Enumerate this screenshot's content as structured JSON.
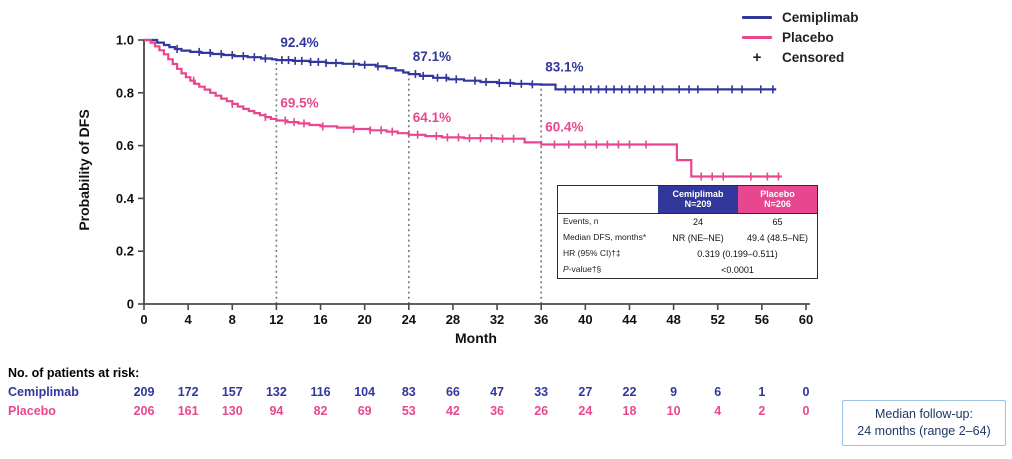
{
  "colors": {
    "cemiplimab": "#31379B",
    "placebo": "#E8478F",
    "axis": "#4A4A4A",
    "text": "#222222",
    "dotted_line": "#7A7A7A",
    "table_border": "#2B2B2B",
    "median_box_border": "#9DC3E6",
    "median_box_text": "#1F3864"
  },
  "legend": {
    "items": [
      {
        "label": "Cemiplimab",
        "marker": "line",
        "color_key": "cemiplimab"
      },
      {
        "label": "Placebo",
        "marker": "line",
        "color_key": "placebo"
      },
      {
        "label": "Censored",
        "marker": "plus",
        "color_key": "text"
      }
    ]
  },
  "axes": {
    "xlabel": "Month",
    "ylabel": "Probability of DFS",
    "x_ticks": [
      0,
      4,
      8,
      12,
      16,
      20,
      24,
      28,
      32,
      36,
      40,
      44,
      48,
      52,
      56,
      60
    ],
    "y_tick_labels": [
      "0",
      "0.2",
      "0.4",
      "0.6",
      "0.8",
      "1.0"
    ],
    "xlim": [
      0,
      60
    ],
    "ylim": [
      0,
      1
    ]
  },
  "chart_data": {
    "type": "line",
    "subtype": "kaplan_meier_step",
    "title": "",
    "xlabel": "Month",
    "ylabel": "Probability of DFS",
    "xlim": [
      0,
      60
    ],
    "ylim": [
      0,
      1
    ],
    "grid": false,
    "legend_position": "top-right",
    "series": [
      {
        "name": "Cemiplimab",
        "color_key": "cemiplimab",
        "points": [
          [
            0,
            1.0
          ],
          [
            1.2,
            0.99
          ],
          [
            1.8,
            0.981
          ],
          [
            2.3,
            0.973
          ],
          [
            2.8,
            0.966
          ],
          [
            3.4,
            0.96
          ],
          [
            4.2,
            0.955
          ],
          [
            5.2,
            0.951
          ],
          [
            6.2,
            0.947
          ],
          [
            7.2,
            0.943
          ],
          [
            8.2,
            0.939
          ],
          [
            9.4,
            0.935
          ],
          [
            10.6,
            0.93
          ],
          [
            11.6,
            0.927
          ],
          [
            12,
            0.924
          ],
          [
            13.5,
            0.921
          ],
          [
            15,
            0.917
          ],
          [
            16.5,
            0.913
          ],
          [
            18,
            0.91
          ],
          [
            19.5,
            0.906
          ],
          [
            21,
            0.9
          ],
          [
            22,
            0.893
          ],
          [
            22.8,
            0.885
          ],
          [
            23.5,
            0.877
          ],
          [
            24,
            0.871
          ],
          [
            25,
            0.864
          ],
          [
            26.2,
            0.857
          ],
          [
            27.6,
            0.851
          ],
          [
            29,
            0.846
          ],
          [
            30.5,
            0.841
          ],
          [
            32,
            0.837
          ],
          [
            33.5,
            0.834
          ],
          [
            35,
            0.832
          ],
          [
            36,
            0.831
          ],
          [
            37.3,
            0.813
          ]
        ],
        "end_month": 57.3,
        "censor_months": [
          3,
          5,
          6,
          7,
          8,
          9,
          10,
          11,
          12.5,
          13.1,
          13.7,
          14.3,
          15.1,
          15.8,
          16.5,
          17.4,
          19,
          20,
          21.2,
          24.6,
          25.3,
          26.6,
          27.4,
          28.3,
          30,
          31,
          32.2,
          33.2,
          34.2,
          35.2,
          38.2,
          39,
          39.8,
          40.5,
          41.2,
          41.9,
          42.6,
          43.3,
          44,
          44.7,
          45.4,
          46.2,
          47,
          48.5,
          49.4,
          50.2,
          52,
          53.3,
          54.2,
          55.9,
          57
        ]
      },
      {
        "name": "Placebo",
        "color_key": "placebo",
        "points": [
          [
            0,
            1.0
          ],
          [
            0.6,
            0.99
          ],
          [
            1.0,
            0.976
          ],
          [
            1.4,
            0.961
          ],
          [
            1.8,
            0.946
          ],
          [
            2.2,
            0.927
          ],
          [
            2.6,
            0.909
          ],
          [
            3.0,
            0.891
          ],
          [
            3.4,
            0.874
          ],
          [
            3.8,
            0.859
          ],
          [
            4.2,
            0.846
          ],
          [
            4.6,
            0.834
          ],
          [
            5.0,
            0.823
          ],
          [
            5.5,
            0.812
          ],
          [
            6.0,
            0.8
          ],
          [
            6.5,
            0.789
          ],
          [
            7.0,
            0.778
          ],
          [
            7.5,
            0.768
          ],
          [
            8.0,
            0.758
          ],
          [
            8.5,
            0.748
          ],
          [
            9.0,
            0.739
          ],
          [
            9.5,
            0.731
          ],
          [
            10.0,
            0.723
          ],
          [
            10.5,
            0.715
          ],
          [
            11.0,
            0.708
          ],
          [
            11.5,
            0.701
          ],
          [
            12,
            0.695
          ],
          [
            13,
            0.689
          ],
          [
            14,
            0.684
          ],
          [
            15,
            0.678
          ],
          [
            16,
            0.673
          ],
          [
            17.5,
            0.668
          ],
          [
            19,
            0.663
          ],
          [
            20.5,
            0.658
          ],
          [
            22,
            0.653
          ],
          [
            23,
            0.647
          ],
          [
            24,
            0.641
          ],
          [
            25.5,
            0.636
          ],
          [
            27,
            0.631
          ],
          [
            29,
            0.628
          ],
          [
            32,
            0.626
          ],
          [
            34.5,
            0.612
          ],
          [
            36,
            0.604
          ],
          [
            48.3,
            0.545
          ],
          [
            49.6,
            0.483
          ]
        ],
        "end_month": 57.8,
        "censor_months": [
          4.5,
          8,
          11,
          12.8,
          13.6,
          14.5,
          16.2,
          19,
          20.5,
          21.5,
          22.5,
          24.8,
          26.5,
          27.5,
          28.5,
          29.5,
          30.5,
          31.5,
          32.5,
          33.5,
          37.2,
          38.5,
          40,
          41,
          42,
          43,
          44,
          45.5,
          50.5,
          51.5,
          52.5,
          55,
          56.5,
          57.5
        ]
      }
    ],
    "reference_lines": [
      {
        "month": 12,
        "top_value": 0.924
      },
      {
        "month": 24,
        "top_value": 0.871
      },
      {
        "month": 36,
        "top_value": 0.831
      }
    ],
    "annotations": [
      {
        "text": "92.4%",
        "month": 12,
        "value": 0.924,
        "color_key": "cemiplimab"
      },
      {
        "text": "87.1%",
        "month": 24,
        "value": 0.871,
        "color_key": "cemiplimab"
      },
      {
        "text": "83.1%",
        "month": 36,
        "value": 0.831,
        "color_key": "cemiplimab"
      },
      {
        "text": "69.5%",
        "month": 12,
        "value": 0.695,
        "color_key": "placebo"
      },
      {
        "text": "64.1%",
        "month": 24,
        "value": 0.641,
        "color_key": "placebo"
      },
      {
        "text": "60.4%",
        "month": 36,
        "value": 0.604,
        "color_key": "placebo"
      }
    ]
  },
  "stats_table": {
    "col1": {
      "name": "Cemiplimab",
      "n": "N=209"
    },
    "col2": {
      "name": "Placebo",
      "n": "N=206"
    },
    "events": {
      "label": "Events, n",
      "cemiplimab": "24",
      "placebo": "65"
    },
    "median": {
      "label": "Median DFS, months*",
      "cemiplimab": "NR (NE–NE)",
      "placebo": "49.4 (48.5–NE)"
    },
    "hr": {
      "label": "HR (95% CI)†‡",
      "value": "0.319 (0.199–0.511)"
    },
    "pvalue": {
      "label_prefix": "P",
      "label_rest": "-value†§",
      "value": "<0.0001"
    }
  },
  "at_risk": {
    "title": "No. of patients at risk:",
    "rows": [
      {
        "name": "Cemiplimab",
        "color_key": "cemiplimab",
        "counts": [
          209,
          172,
          157,
          132,
          116,
          104,
          83,
          66,
          47,
          33,
          27,
          22,
          9,
          6,
          1,
          0
        ]
      },
      {
        "name": "Placebo",
        "color_key": "placebo",
        "counts": [
          206,
          161,
          130,
          94,
          82,
          69,
          53,
          42,
          36,
          26,
          24,
          18,
          10,
          4,
          2,
          0
        ]
      }
    ]
  },
  "median_followup": {
    "line1": "Median follow-up:",
    "line2": "24 months (range 2–64)"
  }
}
